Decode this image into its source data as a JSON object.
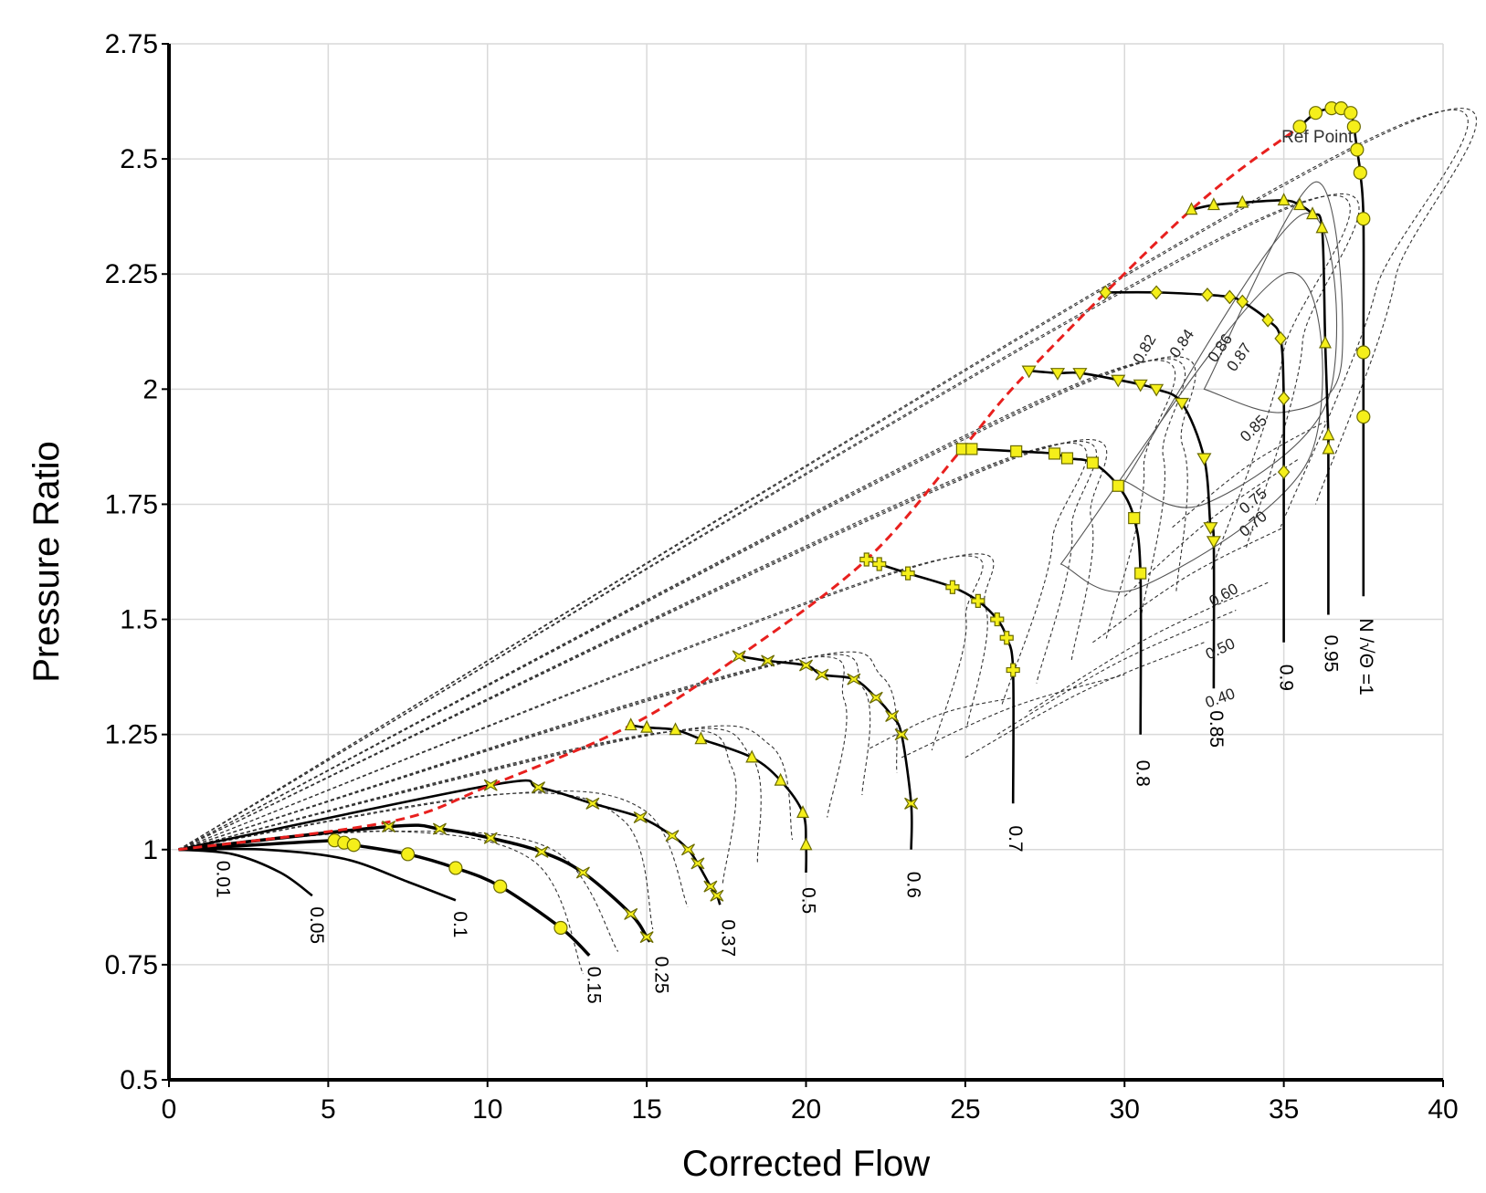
{
  "chart_data": {
    "type": "line",
    "xlabel": "Corrected Flow",
    "ylabel": "Pressure Ratio",
    "xlim": [
      0,
      40
    ],
    "ylim": [
      0.5,
      2.75
    ],
    "xticks": [
      "0",
      "5",
      "10",
      "15",
      "20",
      "25",
      "30",
      "35",
      "40"
    ],
    "yticks": [
      "0.5",
      "0.75",
      "1",
      "1.25",
      "1.5",
      "1.75",
      "2",
      "2.25",
      "2.5",
      "2.75"
    ],
    "grid": true,
    "colors": {
      "speed_line": "#000000",
      "surge_line": "#e8201e",
      "marker_fill": "#f5ef1a",
      "marker_stroke": "#6b6b00",
      "efficiency_contour": "#333333"
    },
    "reference_point": {
      "label": "Ref Point",
      "x": 35.5,
      "y": 2.57
    },
    "surge_line": {
      "name": "",
      "x": [
        0.3,
        6.9,
        10.1,
        14.5,
        17.9,
        21.9,
        24.9,
        27.0,
        32.1,
        35.5
      ],
      "y": [
        1.0,
        1.06,
        1.14,
        1.27,
        1.42,
        1.63,
        1.87,
        2.04,
        2.39,
        2.57
      ]
    },
    "speed_lines": [
      {
        "label": "0.01",
        "x": [
          0.3,
          1.0,
          1.5
        ],
        "y": [
          1.0,
          1.0,
          1.0
        ]
      },
      {
        "label": "0.05",
        "x": [
          0.3,
          2.0,
          3.5,
          4.5
        ],
        "y": [
          1.0,
          0.99,
          0.95,
          0.9
        ]
      },
      {
        "label": "0.1",
        "x": [
          0.3,
          3.0,
          5.5,
          7.5,
          9.0
        ],
        "y": [
          1.0,
          1.0,
          0.98,
          0.93,
          0.89
        ]
      },
      {
        "label": "0.15",
        "x": [
          0.3,
          5.2,
          5.5,
          5.8,
          7.5,
          9.0,
          10.4,
          12.3,
          13.2
        ],
        "y": [
          1.0,
          1.02,
          1.015,
          1.01,
          0.99,
          0.96,
          0.92,
          0.83,
          0.77
        ]
      },
      {
        "label": "0.25",
        "x": [
          0.3,
          6.9,
          8.5,
          10.1,
          11.7,
          13.0,
          14.5,
          15.0,
          15.1
        ],
        "y": [
          1.0,
          1.05,
          1.045,
          1.025,
          0.995,
          0.95,
          0.86,
          0.81,
          0.8
        ]
      },
      {
        "label": "0.37",
        "x": [
          0.3,
          10.1,
          11.6,
          13.3,
          14.8,
          15.8,
          16.3,
          16.6,
          17.0,
          17.2,
          17.3
        ],
        "y": [
          1.0,
          1.14,
          1.135,
          1.1,
          1.07,
          1.03,
          1.0,
          0.97,
          0.92,
          0.9,
          0.88
        ]
      },
      {
        "label": "0.5",
        "x": [
          14.5,
          15.0,
          15.9,
          16.7,
          18.3,
          19.2,
          19.9,
          20.0,
          20.0
        ],
        "y": [
          1.27,
          1.265,
          1.26,
          1.24,
          1.2,
          1.15,
          1.08,
          1.01,
          0.95
        ]
      },
      {
        "label": "0.6",
        "x": [
          17.9,
          18.8,
          20.0,
          20.5,
          21.5,
          22.2,
          22.7,
          23.0,
          23.3,
          23.3
        ],
        "y": [
          1.42,
          1.41,
          1.4,
          1.38,
          1.37,
          1.33,
          1.29,
          1.25,
          1.1,
          1.0
        ]
      },
      {
        "label": "0.7",
        "x": [
          21.9,
          22.3,
          23.2,
          24.6,
          25.4,
          26.0,
          26.3,
          26.5,
          26.5
        ],
        "y": [
          1.63,
          1.62,
          1.6,
          1.57,
          1.54,
          1.5,
          1.46,
          1.39,
          1.1
        ]
      },
      {
        "label": "0.8",
        "x": [
          24.9,
          25.2,
          26.6,
          27.8,
          28.2,
          29.0,
          29.8,
          30.3,
          30.5,
          30.5
        ],
        "y": [
          1.87,
          1.87,
          1.865,
          1.86,
          1.85,
          1.84,
          1.79,
          1.72,
          1.6,
          1.25
        ]
      },
      {
        "label": "0.85",
        "x": [
          27.0,
          27.9,
          28.6,
          29.8,
          30.5,
          31.0,
          31.8,
          32.5,
          32.7,
          32.8,
          32.8
        ],
        "y": [
          2.04,
          2.035,
          2.035,
          2.02,
          2.01,
          2.0,
          1.97,
          1.85,
          1.7,
          1.67,
          1.35
        ]
      },
      {
        "label": "0.9",
        "x": [
          29.4,
          31.0,
          32.6,
          33.3,
          33.7,
          34.5,
          34.9,
          35.0,
          35.0,
          35.0
        ],
        "y": [
          2.21,
          2.21,
          2.205,
          2.2,
          2.19,
          2.15,
          2.11,
          1.98,
          1.82,
          1.45
        ]
      },
      {
        "label": "0.95",
        "x": [
          32.1,
          32.8,
          33.7,
          35.0,
          35.5,
          35.9,
          36.2,
          36.3,
          36.4,
          36.4,
          36.4
        ],
        "y": [
          2.39,
          2.4,
          2.405,
          2.41,
          2.4,
          2.38,
          2.35,
          2.1,
          1.9,
          1.87,
          1.51
        ]
      },
      {
        "label": "N /√Θ =1",
        "x": [
          35.5,
          36.0,
          36.5,
          36.8,
          37.1,
          37.2,
          37.3,
          37.4,
          37.5,
          37.5,
          37.5,
          37.5
        ],
        "y": [
          2.57,
          2.6,
          2.61,
          2.61,
          2.6,
          2.57,
          2.52,
          2.47,
          2.37,
          2.08,
          1.94,
          1.55
        ]
      }
    ],
    "efficiency_labels": [
      "0.82",
      "0.84",
      "0.86",
      "0.87",
      "0.85",
      "0.75",
      "0.70",
      "0.60",
      "0.50",
      "0.40"
    ]
  }
}
